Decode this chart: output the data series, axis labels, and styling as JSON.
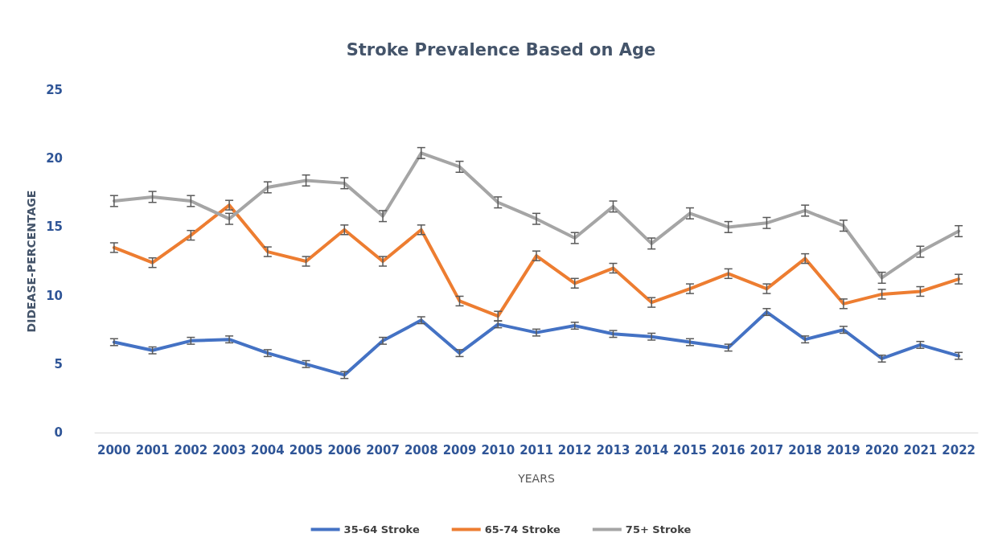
{
  "chart_data": {
    "type": "line",
    "title": "Stroke Prevalence Based on Age",
    "xlabel": "YEARS",
    "ylabel": "DIDEASE-PERCENTAGE",
    "categories": [
      "2000",
      "2001",
      "2002",
      "2003",
      "2004",
      "2005",
      "2006",
      "2007",
      "2008",
      "2009",
      "2010",
      "2011",
      "2012",
      "2013",
      "2014",
      "2015",
      "2016",
      "2017",
      "2018",
      "2019",
      "2020",
      "2021",
      "2022"
    ],
    "series": [
      {
        "name": "35-64 Stroke",
        "color": "#4472c4",
        "values": [
          6.6,
          6.0,
          6.7,
          6.8,
          5.8,
          5.0,
          4.2,
          6.7,
          8.2,
          5.8,
          7.9,
          7.3,
          7.8,
          7.2,
          7.0,
          6.6,
          6.2,
          8.8,
          6.8,
          7.5,
          5.4,
          6.4,
          5.6
        ],
        "errors": [
          0.25,
          0.25,
          0.25,
          0.25,
          0.25,
          0.25,
          0.25,
          0.25,
          0.25,
          0.25,
          0.25,
          0.25,
          0.25,
          0.25,
          0.25,
          0.25,
          0.25,
          0.25,
          0.25,
          0.25,
          0.25,
          0.25,
          0.25
        ]
      },
      {
        "name": "65-74 Stroke",
        "color": "#ed7d31",
        "values": [
          13.5,
          12.4,
          14.4,
          16.6,
          13.2,
          12.5,
          14.8,
          12.5,
          14.8,
          9.6,
          8.5,
          12.9,
          10.9,
          12.0,
          9.5,
          10.5,
          11.6,
          10.5,
          12.7,
          9.4,
          10.1,
          10.3,
          11.2
        ],
        "errors": [
          0.35,
          0.35,
          0.35,
          0.35,
          0.35,
          0.35,
          0.35,
          0.35,
          0.35,
          0.35,
          0.35,
          0.35,
          0.35,
          0.35,
          0.35,
          0.35,
          0.35,
          0.35,
          0.35,
          0.35,
          0.35,
          0.35,
          0.35
        ]
      },
      {
        "name": "75+ Stroke",
        "color": "#a5a5a5",
        "values": [
          16.9,
          17.2,
          16.9,
          15.6,
          17.9,
          18.4,
          18.2,
          15.8,
          20.4,
          19.4,
          16.8,
          15.6,
          14.2,
          16.5,
          13.8,
          16.0,
          15.0,
          15.3,
          16.2,
          15.1,
          11.3,
          13.2,
          14.7
        ],
        "errors": [
          0.4,
          0.4,
          0.4,
          0.4,
          0.4,
          0.4,
          0.4,
          0.4,
          0.4,
          0.4,
          0.4,
          0.4,
          0.4,
          0.4,
          0.4,
          0.4,
          0.4,
          0.4,
          0.4,
          0.4,
          0.4,
          0.4,
          0.4
        ]
      }
    ],
    "ylim": [
      0,
      25
    ],
    "yticks": [
      0,
      5,
      10,
      15,
      20,
      25
    ],
    "grid": false,
    "legend": "bottom",
    "marker": "none",
    "line_style": "solid"
  }
}
